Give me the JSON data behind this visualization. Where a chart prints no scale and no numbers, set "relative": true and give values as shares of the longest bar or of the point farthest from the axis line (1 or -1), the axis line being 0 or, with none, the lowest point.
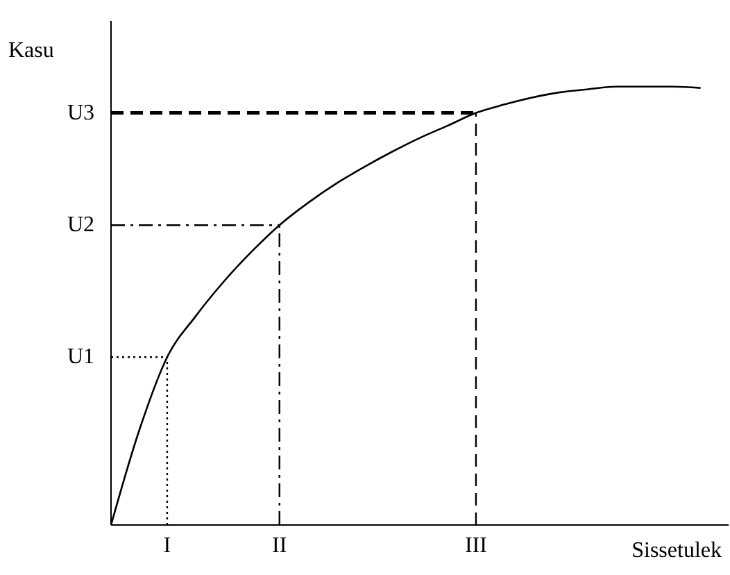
{
  "chart_data": {
    "type": "line",
    "relative": true,
    "xlabel": "Sissetulek",
    "ylabel": "Kasu",
    "categories": [
      null,
      null,
      "I",
      null,
      null,
      null,
      "II",
      null,
      null,
      null,
      null,
      null,
      null,
      "III",
      null,
      null,
      null,
      null,
      null,
      null,
      null,
      null,
      null
    ],
    "series": [
      {
        "color": "#000000",
        "line_style": "solid",
        "values": [
          0,
          0.215,
          0.383,
          0.475,
          0.554,
          0.623,
          0.684,
          0.734,
          0.778,
          0.816,
          0.851,
          0.883,
          0.911,
          0.94,
          0.959,
          0.975,
          0.987,
          0.994,
          1,
          1,
          1,
          0.997,
          null
        ]
      }
    ],
    "annotations": [
      "U1",
      "U2",
      "U3"
    ]
  }
}
